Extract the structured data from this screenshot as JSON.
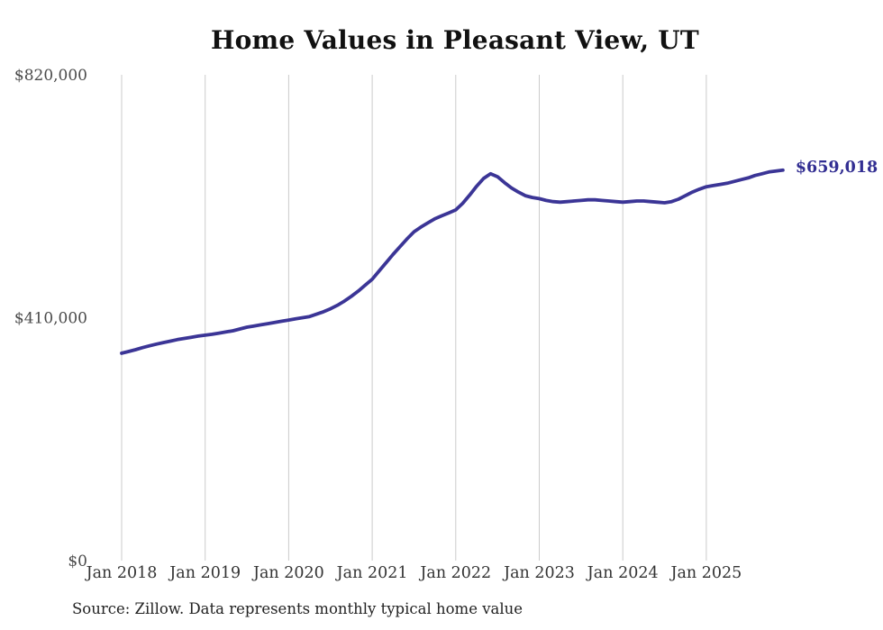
{
  "chart": {
    "title": "Home Values in Pleasant View, UT",
    "source_note": "Source: Zillow. Data represents monthly typical home value",
    "end_label": "$659,018",
    "colors": {
      "line": "#3b3596",
      "end_label": "#322e92",
      "gridline": "#cbcbcb",
      "title": "#111111",
      "y_tick_label": "#4a4a4a",
      "x_tick_label": "#333333",
      "source": "#222222",
      "background": "#ffffff"
    }
  },
  "chart_data": {
    "type": "line",
    "title": "Home Values in Pleasant View, UT",
    "xlabel": "",
    "ylabel": "",
    "ylim": [
      0,
      820000
    ],
    "grid": "vertical-only",
    "legend": "none",
    "y_ticks": [
      {
        "label": "$820,000",
        "value": 820000
      },
      {
        "label": "$410,000",
        "value": 410000
      },
      {
        "label": "$0",
        "value": 0
      }
    ],
    "x_ticks": [
      "Jan 2018",
      "Jan 2019",
      "Jan 2020",
      "Jan 2021",
      "Jan 2022",
      "Jan 2023",
      "Jan 2024",
      "Jan 2025"
    ],
    "series": [
      {
        "name": "Monthly typical home value",
        "start_month": "2018-01",
        "end_month": "2025-12",
        "interval": "monthly",
        "values": [
          350000,
          353000,
          356000,
          359500,
          362500,
          365500,
          368000,
          370500,
          373000,
          375000,
          377000,
          379000,
          380500,
          382000,
          384000,
          386000,
          388000,
          391000,
          394000,
          396000,
          398000,
          400000,
          402000,
          404000,
          406000,
          408000,
          410000,
          412000,
          416000,
          420000,
          425000,
          431000,
          438000,
          446000,
          455000,
          465000,
          475000,
          489000,
          503000,
          517000,
          530000,
          543000,
          555000,
          563000,
          570000,
          577000,
          582000,
          587000,
          592000,
          603000,
          617000,
          632000,
          645000,
          653000,
          648000,
          638000,
          629000,
          622000,
          616000,
          613000,
          611000,
          608000,
          606000,
          605000,
          606000,
          607000,
          608000,
          609000,
          609000,
          608000,
          607000,
          606000,
          605000,
          606000,
          607000,
          607000,
          606000,
          605000,
          604000,
          606000,
          610000,
          616000,
          622000,
          627000,
          631000,
          633000,
          635000,
          637000,
          640000,
          643000,
          646000,
          650000,
          653000,
          656000,
          657500,
          659018
        ]
      }
    ],
    "annotations": [
      {
        "text": "$659,018",
        "at": "2025-12",
        "value": 659018
      }
    ]
  }
}
